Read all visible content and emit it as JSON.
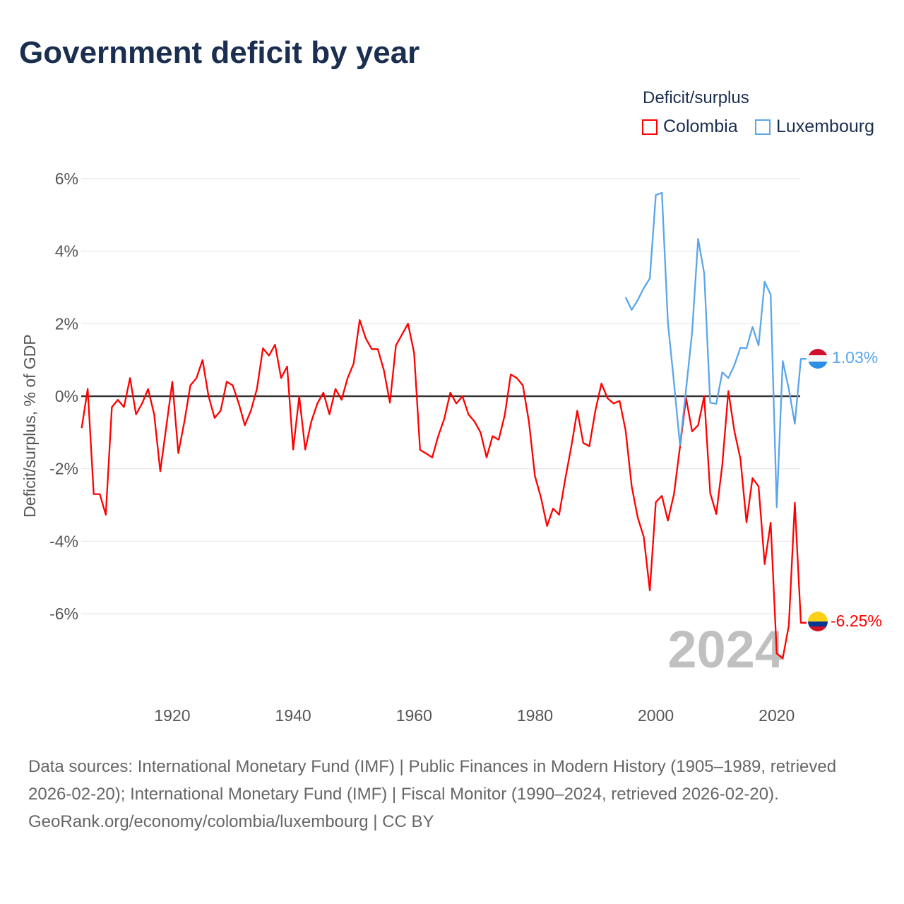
{
  "title": "Government deficit by year",
  "legend": {
    "title": "Deficit/surplus",
    "items": [
      {
        "name": "Colombia",
        "color": "#ff0000"
      },
      {
        "name": "Luxembourg",
        "color": "#5aa5ec"
      }
    ]
  },
  "year_watermark": "2024",
  "footer": {
    "sources": "Data sources: International Monetary Fund (IMF) | Public Finances in Modern History (1905–1989, retrieved 2026-02-20); International Monetary Fund (IMF) | Fiscal Monitor (1990–2024, retrieved 2026-02-20).",
    "credit": "GeoRank.org/economy/colombia/luxembourg | CC BY"
  },
  "chart_data": {
    "type": "line",
    "title": "Government deficit by year",
    "xlabel": "",
    "ylabel": "Deficit/surplus, % of GDP",
    "xlim": [
      1905,
      2024
    ],
    "ylim": [
      -7.8,
      6.2
    ],
    "x_ticks": [
      1920,
      1940,
      1960,
      1980,
      2000,
      2020
    ],
    "y_ticks": [
      6,
      4,
      2,
      0,
      -2,
      -4,
      -6
    ],
    "y_tick_labels": [
      "6%",
      "4%",
      "2%",
      "0%",
      "-2%",
      "-4%",
      "-6%"
    ],
    "grid": true,
    "legend_position": "top-right",
    "series": [
      {
        "name": "Colombia",
        "color": "#ff0000",
        "start_year": 1905,
        "end_label": "-6.25%",
        "values": [
          -0.88,
          0.2,
          -2.7,
          -2.7,
          -3.27,
          -0.3,
          -0.1,
          -0.3,
          0.5,
          -0.5,
          -0.2,
          0.2,
          -0.5,
          -2.07,
          -0.85,
          0.4,
          -1.57,
          -0.7,
          0.3,
          0.5,
          1.0,
          0,
          -0.6,
          -0.4,
          0.4,
          0.3,
          -0.2,
          -0.8,
          -0.4,
          0.2,
          1.32,
          1.12,
          1.42,
          0.5,
          0.82,
          -1.47,
          0,
          -1.47,
          -0.7,
          -0.2,
          0.1,
          -0.5,
          0.2,
          -0.1,
          0.5,
          0.9,
          2.1,
          1.6,
          1.3,
          1.3,
          0.72,
          -0.18,
          1.4,
          1.7,
          2.0,
          1.2,
          -1.48,
          -1.58,
          -1.69,
          -1.1,
          -0.62,
          0.1,
          -0.2,
          0,
          -0.5,
          -0.7,
          -1.0,
          -1.69,
          -1.1,
          -1.2,
          -0.52,
          0.6,
          0.5,
          0.3,
          -0.7,
          -2.2,
          -2.8,
          -3.58,
          -3.1,
          -3.27,
          -2.3,
          -1.4,
          -0.4,
          -1.29,
          -1.38,
          -0.4,
          0.35,
          -0.05,
          -0.2,
          -0.13,
          -0.94,
          -2.48,
          -3.34,
          -3.88,
          -5.36,
          -2.92,
          -2.75,
          -3.43,
          -2.7,
          -1.4,
          -0.05,
          -0.97,
          -0.8,
          0,
          -2.67,
          -3.25,
          -1.9,
          0.14,
          -0.97,
          -1.73,
          -3.48,
          -2.26,
          -2.49,
          -4.63,
          -3.49,
          -7.1,
          -7.23,
          -6.33,
          -2.94,
          -6.25
        ]
      },
      {
        "name": "Luxembourg",
        "color": "#5aa5ec",
        "start_year": 1995,
        "end_label": "1.03%",
        "values": [
          2.73,
          2.38,
          2.65,
          2.98,
          3.25,
          5.55,
          5.61,
          2.03,
          0.37,
          -1.35,
          0.18,
          1.77,
          4.34,
          3.39,
          -0.18,
          -0.21,
          0.66,
          0.5,
          0.86,
          1.34,
          1.32,
          1.91,
          1.4,
          3.16,
          2.8,
          -3.06,
          0.97,
          0.2,
          -0.76,
          1.03
        ]
      }
    ]
  }
}
